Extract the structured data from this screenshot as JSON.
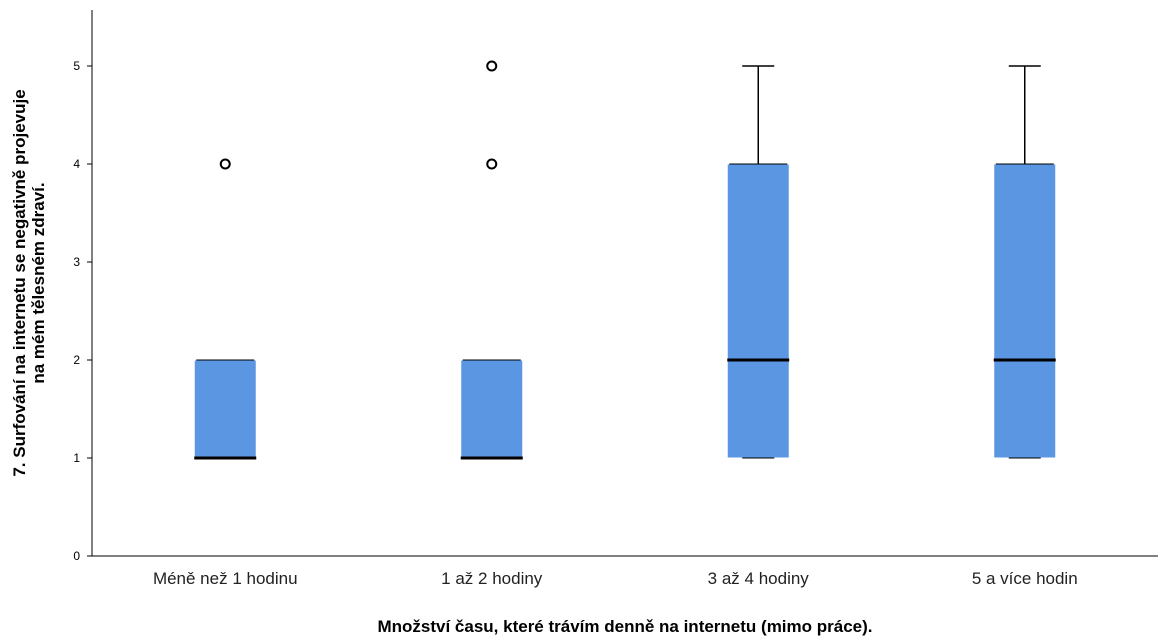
{
  "chart_data": {
    "type": "boxplot",
    "xlabel": "Množství času, které trávím denně na internetu (mimo práce).",
    "ylabel_line1": "7. Surfování na internetu se negativně projevuje",
    "ylabel_line2": "na mém tělesném zdraví.",
    "ylim": [
      0,
      5.5
    ],
    "yticks": [
      0,
      1,
      2,
      3,
      4,
      5
    ],
    "grid": false,
    "box_color": "#5b96e3",
    "categories": [
      "Méně než 1 hodinu",
      "1 až 2 hodiny",
      "3 až 4 hodiny",
      "5 a více hodin"
    ],
    "boxes": [
      {
        "whisker_low": 1,
        "q1": 1,
        "median": 1,
        "q3": 2,
        "whisker_high": 2,
        "outliers": [
          4
        ]
      },
      {
        "whisker_low": 1,
        "q1": 1,
        "median": 1,
        "q3": 2,
        "whisker_high": 2,
        "outliers": [
          4,
          5
        ]
      },
      {
        "whisker_low": 1,
        "q1": 1,
        "median": 2,
        "q3": 4,
        "whisker_high": 5,
        "outliers": []
      },
      {
        "whisker_low": 1,
        "q1": 1,
        "median": 2,
        "q3": 4,
        "whisker_high": 5,
        "outliers": []
      }
    ]
  }
}
